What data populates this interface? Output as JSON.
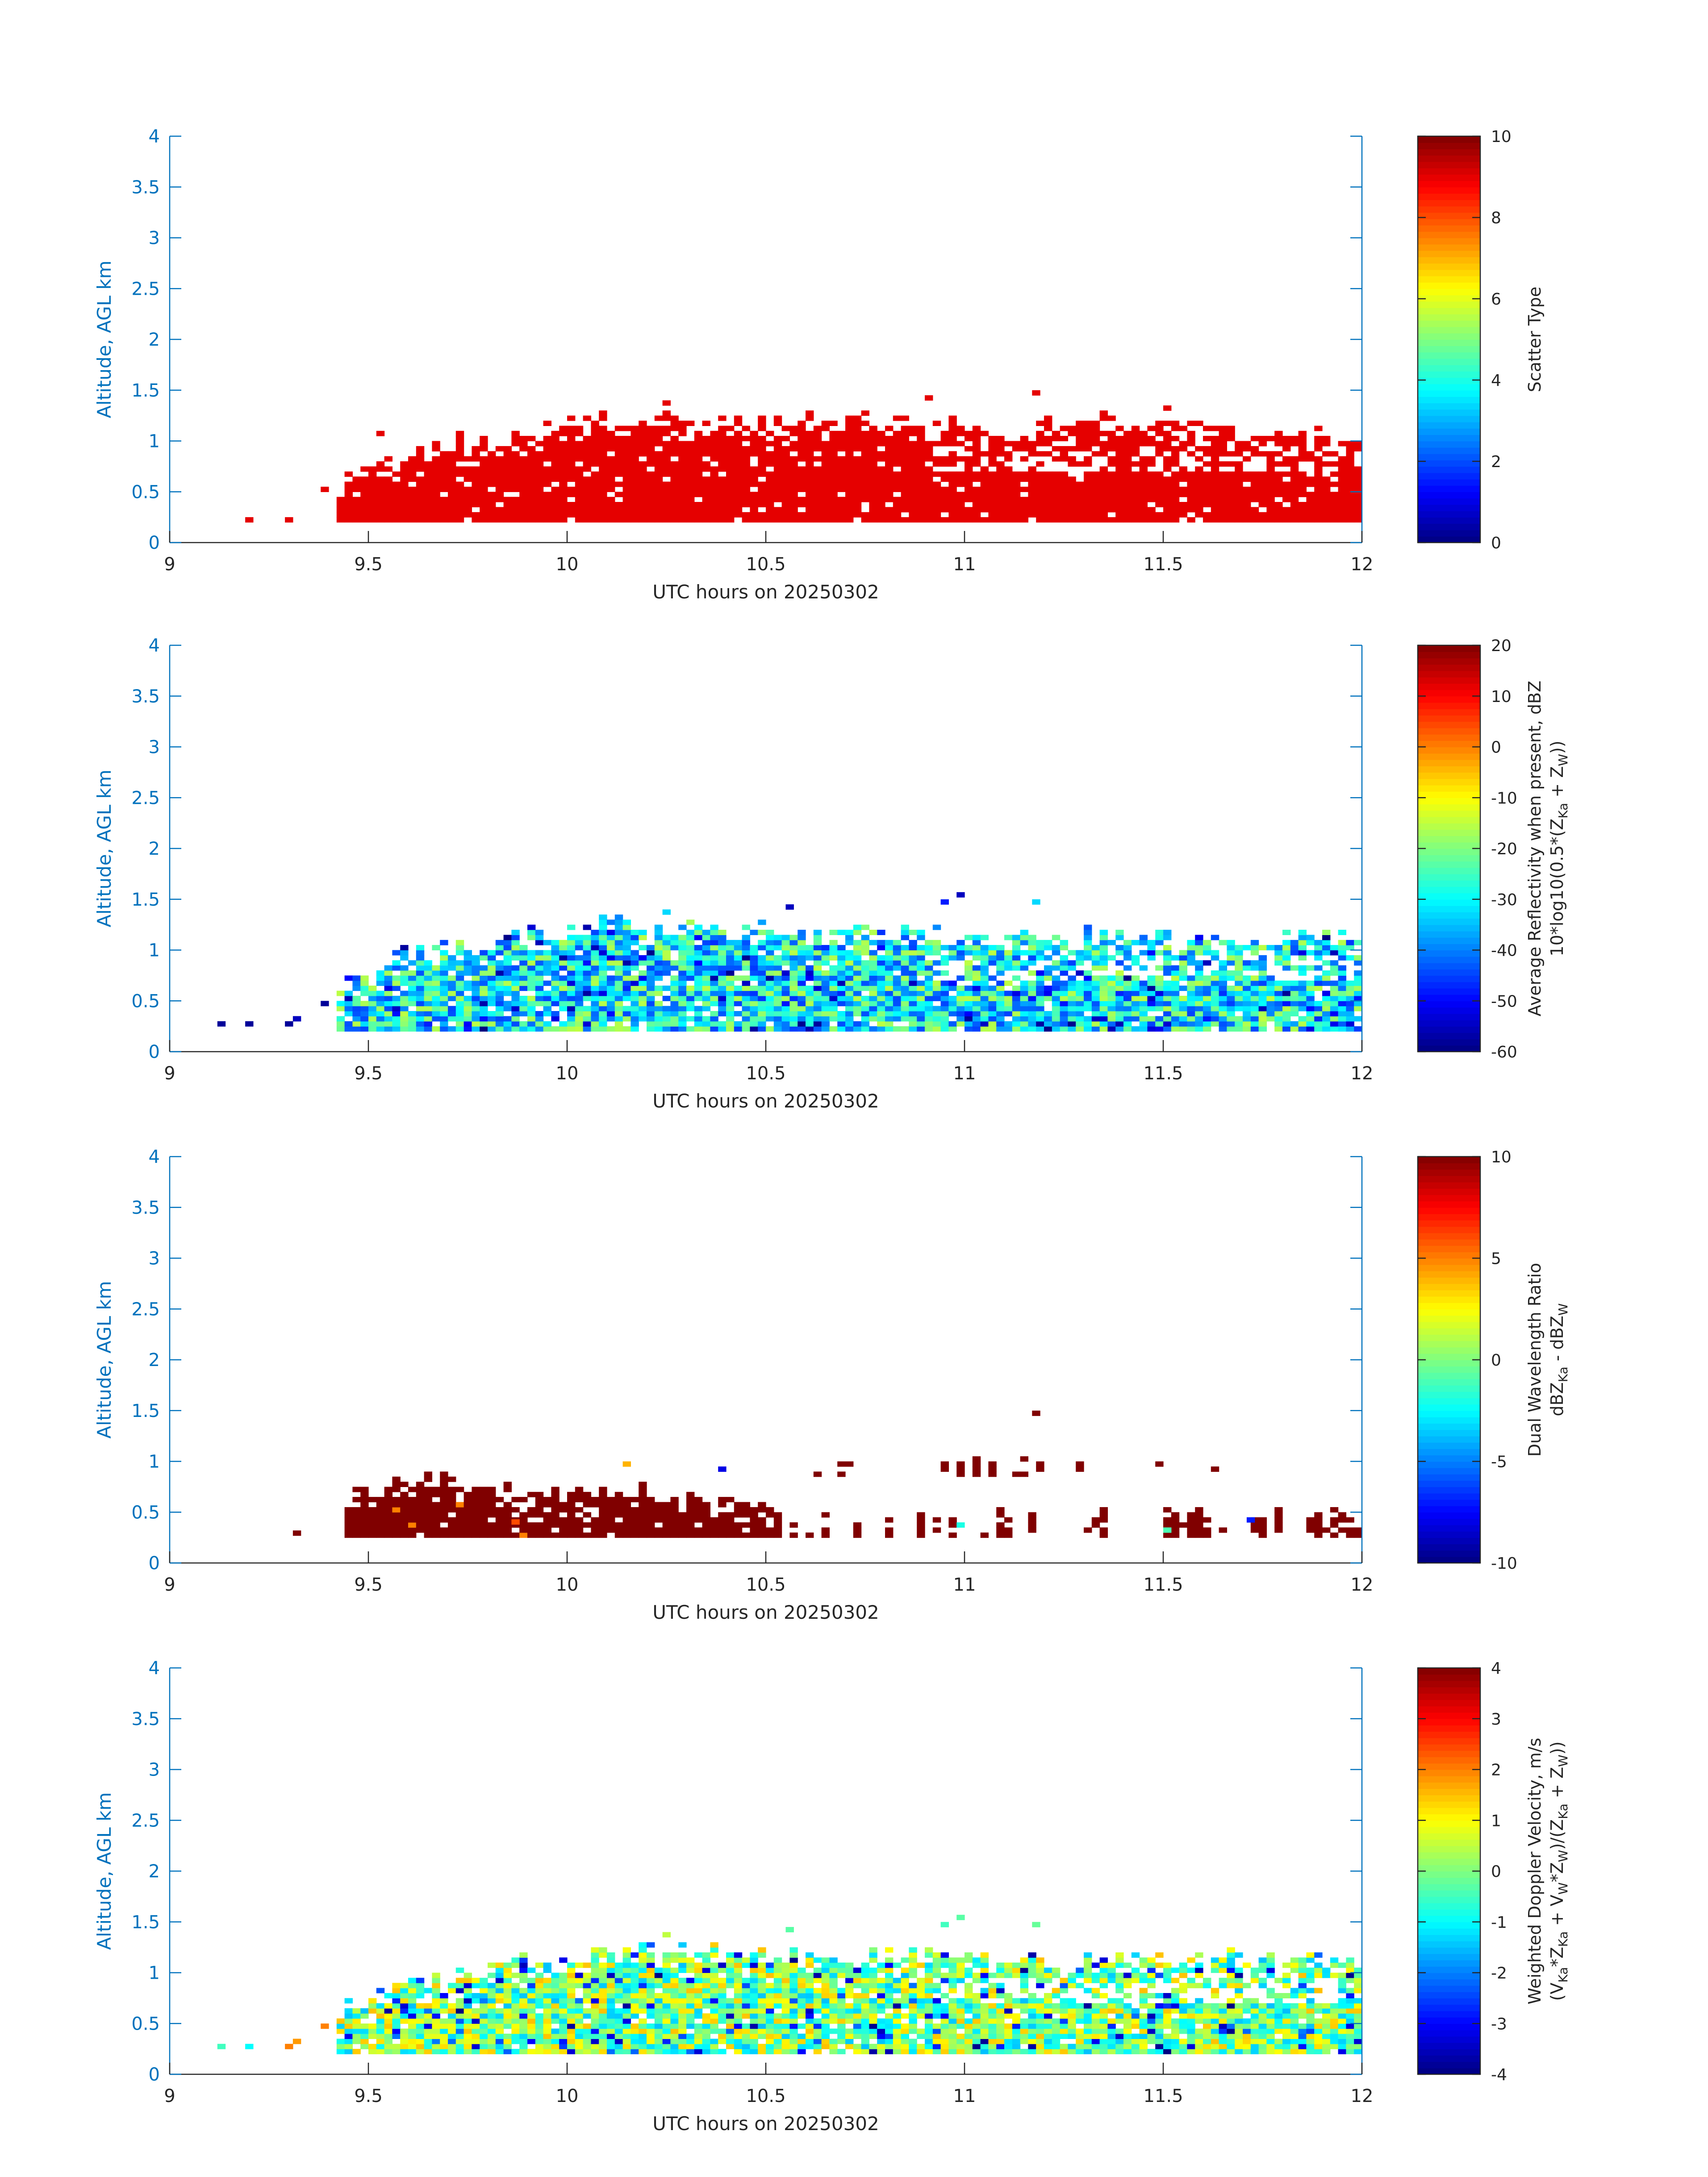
{
  "chart_data": [
    {
      "type": "heatmap",
      "xlabel": "UTC hours on 20250302",
      "ylabel": "Altitude, AGL km",
      "xlim": [
        9,
        12
      ],
      "ylim": [
        0,
        4
      ],
      "xticks": [
        "9",
        "9.5",
        "10",
        "10.5",
        "11",
        "11.5",
        "12"
      ],
      "yticks": [
        "0",
        "0.5",
        "1",
        "1.5",
        "2",
        "2.5",
        "3",
        "3.5",
        "4"
      ],
      "colormap": "jet",
      "clim": [
        0,
        10
      ],
      "colorbar_ticks": [
        "0",
        "2",
        "4",
        "6",
        "8",
        "10"
      ],
      "colorbar_label": "Scatter Type",
      "field": {
        "x_start": 9.42,
        "x_end": 12.0,
        "base_km": 0.2,
        "top_km_at": [
          [
            9.42,
            0.55
          ],
          [
            9.6,
            0.9
          ],
          [
            9.8,
            1.0
          ],
          [
            10.1,
            1.2
          ],
          [
            10.5,
            1.15
          ],
          [
            10.8,
            1.2
          ],
          [
            11.1,
            1.1
          ],
          [
            11.4,
            1.2
          ],
          [
            11.7,
            1.05
          ],
          [
            12.0,
            1.05
          ]
        ],
        "value": 9
      },
      "isolated_cells": [
        [
          9.19,
          0.2,
          9
        ],
        [
          9.29,
          0.2,
          9
        ],
        [
          9.38,
          0.5,
          9
        ],
        [
          10.24,
          1.35,
          9
        ],
        [
          10.9,
          1.4,
          9
        ],
        [
          11.17,
          1.45,
          9
        ],
        [
          9.52,
          1.05,
          9
        ],
        [
          11.5,
          1.3,
          9
        ]
      ]
    },
    {
      "type": "heatmap",
      "xlabel": "UTC hours on 20250302",
      "ylabel": "Altitude, AGL km",
      "xlim": [
        9,
        12
      ],
      "ylim": [
        0,
        4
      ],
      "xticks": [
        "9",
        "9.5",
        "10",
        "10.5",
        "11",
        "11.5",
        "12"
      ],
      "yticks": [
        "0",
        "0.5",
        "1",
        "1.5",
        "2",
        "2.5",
        "3",
        "3.5",
        "4"
      ],
      "colormap": "jet",
      "clim": [
        -60,
        20
      ],
      "colorbar_ticks": [
        "-60",
        "-50",
        "-40",
        "-30",
        "-20",
        "-10",
        "0",
        "10",
        "20"
      ],
      "colorbar_label_line1": "Average Reflectivity when present, dBZ",
      "colorbar_label_line2": "10*log10(0.5*(Z",
      "colorbar_label_sub1": "Ka",
      "colorbar_label_mid": " + Z",
      "colorbar_label_sub2": "W",
      "colorbar_label_end": "))",
      "field": {
        "x_start": 9.42,
        "x_end": 12.0,
        "base_km": 0.2,
        "top_km_at": [
          [
            9.42,
            0.65
          ],
          [
            9.6,
            0.95
          ],
          [
            9.8,
            1.05
          ],
          [
            10.1,
            1.25
          ],
          [
            10.5,
            1.2
          ],
          [
            10.8,
            1.15
          ],
          [
            11.1,
            1.1
          ],
          [
            11.4,
            1.15
          ],
          [
            11.7,
            1.1
          ],
          [
            12.0,
            1.1
          ]
        ],
        "value_range": [
          -45,
          -15
        ]
      },
      "isolated_cells": [
        [
          9.12,
          0.25,
          -58
        ],
        [
          9.19,
          0.25,
          -58
        ],
        [
          9.29,
          0.25,
          -58
        ],
        [
          9.31,
          0.3,
          -55
        ],
        [
          9.38,
          0.45,
          -58
        ],
        [
          10.24,
          1.35,
          -33
        ],
        [
          10.55,
          1.4,
          -55
        ],
        [
          10.94,
          1.45,
          -48
        ],
        [
          10.98,
          1.52,
          -55
        ],
        [
          11.17,
          1.45,
          -33
        ]
      ]
    },
    {
      "type": "heatmap",
      "xlabel": "UTC hours on 20250302",
      "ylabel": "Altitude, AGL km",
      "xlim": [
        9,
        12
      ],
      "ylim": [
        0,
        4
      ],
      "xticks": [
        "9",
        "9.5",
        "10",
        "10.5",
        "11",
        "11.5",
        "12"
      ],
      "yticks": [
        "0",
        "0.5",
        "1",
        "1.5",
        "2",
        "2.5",
        "3",
        "3.5",
        "4"
      ],
      "colormap": "jet",
      "clim": [
        -10,
        10
      ],
      "colorbar_ticks": [
        "-10",
        "-5",
        "0",
        "5",
        "10"
      ],
      "colorbar_label_line1": "Dual Wavelength Ratio",
      "colorbar_label_line2": "dBZ",
      "colorbar_label_sub1": "Ka",
      "colorbar_label_mid": " - dBZ",
      "colorbar_label_sub2": "W",
      "colorbar_label_end": "",
      "field": {
        "x_start": 9.44,
        "x_end": 12.0,
        "base_km": 0.25,
        "dense_until": 10.52,
        "top_km_at": [
          [
            9.44,
            0.6
          ],
          [
            9.55,
            0.75
          ],
          [
            9.65,
            0.82
          ],
          [
            9.8,
            0.72
          ],
          [
            10.0,
            0.7
          ],
          [
            10.2,
            0.65
          ],
          [
            10.4,
            0.6
          ],
          [
            10.52,
            0.55
          ]
        ],
        "value": 10
      },
      "isolated_cells": [
        [
          9.31,
          0.27,
          10
        ],
        [
          11.17,
          1.45,
          10
        ],
        [
          10.14,
          0.95,
          4
        ],
        [
          10.38,
          0.9,
          -8
        ],
        [
          9.86,
          0.38,
          6
        ],
        [
          10.98,
          0.35,
          -2
        ],
        [
          11.5,
          0.3,
          -1
        ],
        [
          11.71,
          0.4,
          -7
        ]
      ]
    },
    {
      "type": "heatmap",
      "xlabel": "UTC hours on 20250302",
      "ylabel": "Altitude, AGL km",
      "xlim": [
        9,
        12
      ],
      "ylim": [
        0,
        4
      ],
      "xticks": [
        "9",
        "9.5",
        "10",
        "10.5",
        "11",
        "11.5",
        "12"
      ],
      "yticks": [
        "0",
        "0.5",
        "1",
        "1.5",
        "2",
        "2.5",
        "3",
        "3.5",
        "4"
      ],
      "colormap": "jet",
      "clim": [
        -4,
        4
      ],
      "colorbar_ticks": [
        "-4",
        "-3",
        "-2",
        "-1",
        "0",
        "1",
        "2",
        "3",
        "4"
      ],
      "colorbar_label_line1": "Weighted Doppler Velocity, m/s",
      "colorbar_label_line2": "(V",
      "colorbar_label_sub1": "Ka",
      "colorbar_label_mid": "*Z",
      "colorbar_label_sub2": "Ka",
      "colorbar_label_end": " + V",
      "colorbar_label_sub3": "W",
      "colorbar_label_end2": "*Z",
      "colorbar_label_sub4": "W",
      "colorbar_label_end3": ")/(Z",
      "colorbar_label_sub5": "Ka",
      "colorbar_label_end4": " + Z",
      "colorbar_label_sub6": "W",
      "colorbar_label_end5": "))",
      "field": {
        "x_start": 9.42,
        "x_end": 12.0,
        "base_km": 0.2,
        "top_km_at": [
          [
            9.42,
            0.6
          ],
          [
            9.6,
            0.9
          ],
          [
            9.8,
            1.0
          ],
          [
            10.1,
            1.25
          ],
          [
            10.5,
            1.15
          ],
          [
            10.8,
            1.15
          ],
          [
            11.1,
            1.1
          ],
          [
            11.4,
            1.15
          ],
          [
            11.7,
            1.1
          ],
          [
            12.0,
            1.1
          ]
        ],
        "value_range": [
          -1.5,
          1.5
        ]
      },
      "isolated_cells": [
        [
          9.12,
          0.25,
          -0.5
        ],
        [
          9.19,
          0.25,
          -1
        ],
        [
          9.29,
          0.25,
          2
        ],
        [
          9.31,
          0.3,
          1.8
        ],
        [
          9.38,
          0.45,
          2
        ],
        [
          10.24,
          1.35,
          0.5
        ],
        [
          10.55,
          1.4,
          -0.3
        ],
        [
          10.94,
          1.45,
          -0.5
        ],
        [
          10.98,
          1.52,
          -0.3
        ],
        [
          11.17,
          1.45,
          -0.2
        ]
      ]
    }
  ]
}
